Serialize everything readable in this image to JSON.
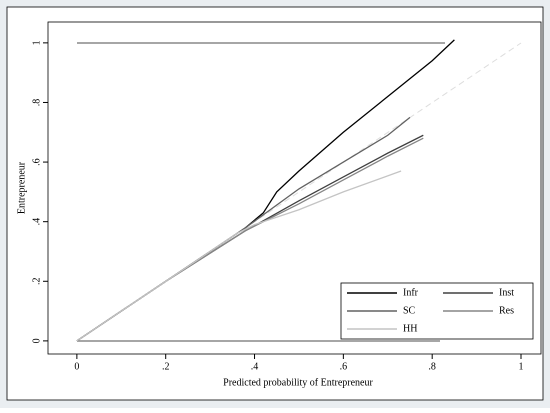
{
  "chart_data": {
    "type": "line",
    "xlabel": "Predicted probability of Entrepreneur",
    "ylabel": "Entrepreneur",
    "xlim": [
      -0.065,
      1.045
    ],
    "ylim": [
      -0.044,
      1.07
    ],
    "xticks": [
      0,
      {
        "value": 0.2,
        "label": ".2"
      },
      {
        "value": 0.4,
        "label": ".4"
      },
      {
        "value": 0.6,
        "label": ".6"
      },
      {
        "value": 0.8,
        "label": ".8"
      },
      1
    ],
    "yticks": [
      0,
      {
        "value": 0.2,
        "label": ".2"
      },
      {
        "value": 0.4,
        "label": ".4"
      },
      {
        "value": 0.6,
        "label": ".6"
      },
      {
        "value": 0.8,
        "label": ".8"
      },
      1
    ],
    "grid": false,
    "legend": "bottom-right",
    "series": [
      {
        "name": "Infr",
        "color": "#000000",
        "x": [
          0,
          0.1,
          0.2,
          0.3,
          0.38,
          0.42,
          0.45,
          0.5,
          0.6,
          0.7,
          0.8,
          0.85
        ],
        "values": [
          0,
          0.1,
          0.2,
          0.3,
          0.38,
          0.43,
          0.5,
          0.57,
          0.7,
          0.82,
          0.94,
          1.01
        ]
      },
      {
        "name": "Inst",
        "color": "#404040",
        "x": [
          0,
          0.2,
          0.38,
          0.5,
          0.6,
          0.7,
          0.78
        ],
        "values": [
          0,
          0.2,
          0.37,
          0.47,
          0.55,
          0.63,
          0.69
        ]
      },
      {
        "name": "SC",
        "color": "#626262",
        "x": [
          0,
          0.2,
          0.38,
          0.5,
          0.6,
          0.7,
          0.75
        ],
        "values": [
          0,
          0.2,
          0.38,
          0.51,
          0.6,
          0.69,
          0.75
        ]
      },
      {
        "name": "Res",
        "color": "#868686",
        "x": [
          0,
          0.2,
          0.38,
          0.5,
          0.6,
          0.7,
          0.78
        ],
        "values": [
          0,
          0.2,
          0.37,
          0.46,
          0.54,
          0.62,
          0.68
        ]
      },
      {
        "name": "HH",
        "color": "#c4c4c4",
        "x": [
          0,
          0.2,
          0.36,
          0.4,
          0.5,
          0.6,
          0.73
        ],
        "values": [
          0,
          0.2,
          0.36,
          0.39,
          0.44,
          0.5,
          0.57
        ]
      }
    ]
  }
}
